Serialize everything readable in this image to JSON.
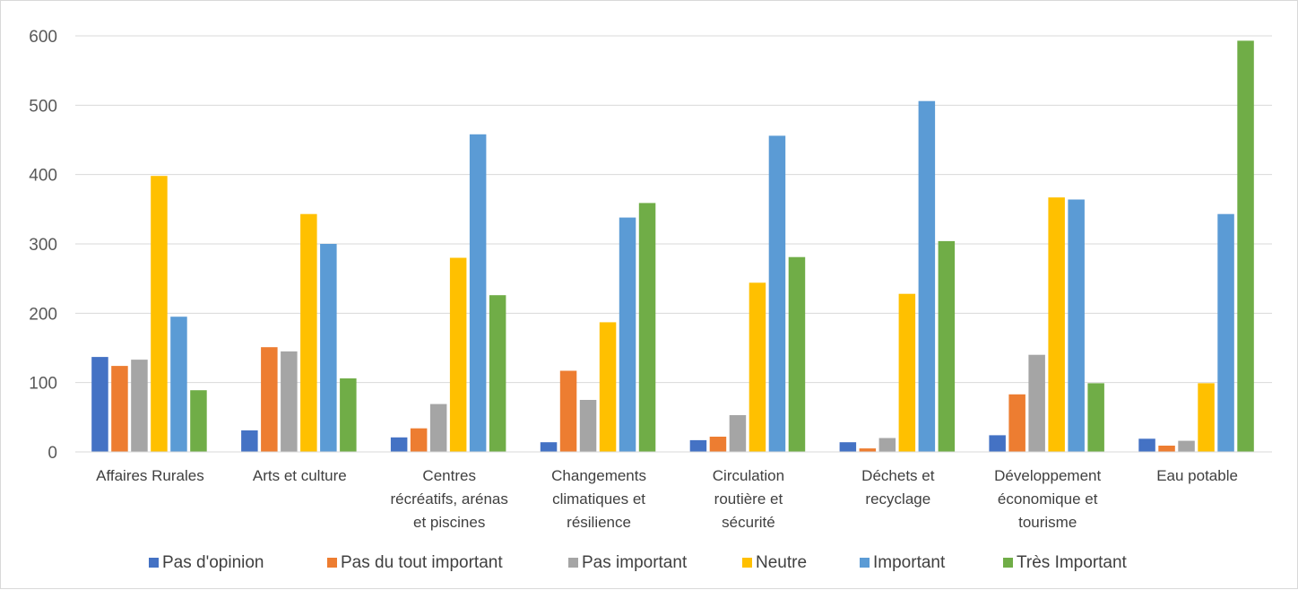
{
  "chart_data": {
    "type": "bar",
    "title": "",
    "xlabel": "",
    "ylabel": "",
    "ylim": [
      0,
      600
    ],
    "yticks": [
      0,
      100,
      200,
      300,
      400,
      500,
      600
    ],
    "grid": true,
    "legend_position": "bottom",
    "categories": [
      [
        "Affaires Rurales"
      ],
      [
        "Arts et culture"
      ],
      [
        "Centres",
        "récréatifs, arénas",
        "et piscines"
      ],
      [
        "Changements",
        "climatiques et",
        "résilience"
      ],
      [
        "Circulation",
        "routière et",
        "sécurité"
      ],
      [
        "Déchets et",
        "recyclage"
      ],
      [
        "Développement",
        "économique et",
        "tourisme"
      ],
      [
        "Eau potable"
      ]
    ],
    "series": [
      {
        "name": "Pas d'opinion",
        "color": "#4472c4",
        "values": [
          137,
          31,
          21,
          14,
          17,
          14,
          24,
          19
        ]
      },
      {
        "name": "Pas du tout important",
        "color": "#ed7d31",
        "values": [
          124,
          151,
          34,
          117,
          22,
          5,
          83,
          9
        ]
      },
      {
        "name": "Pas important",
        "color": "#a5a5a5",
        "values": [
          133,
          145,
          69,
          75,
          53,
          20,
          140,
          16
        ]
      },
      {
        "name": "Neutre",
        "color": "#ffc000",
        "values": [
          398,
          343,
          280,
          187,
          244,
          228,
          367,
          99
        ]
      },
      {
        "name": "Important",
        "color": "#5b9bd5",
        "values": [
          195,
          300,
          458,
          338,
          456,
          506,
          364,
          343
        ]
      },
      {
        "name": "Très Important",
        "color": "#70ad47",
        "values": [
          89,
          106,
          226,
          359,
          281,
          304,
          99,
          593
        ]
      }
    ]
  }
}
